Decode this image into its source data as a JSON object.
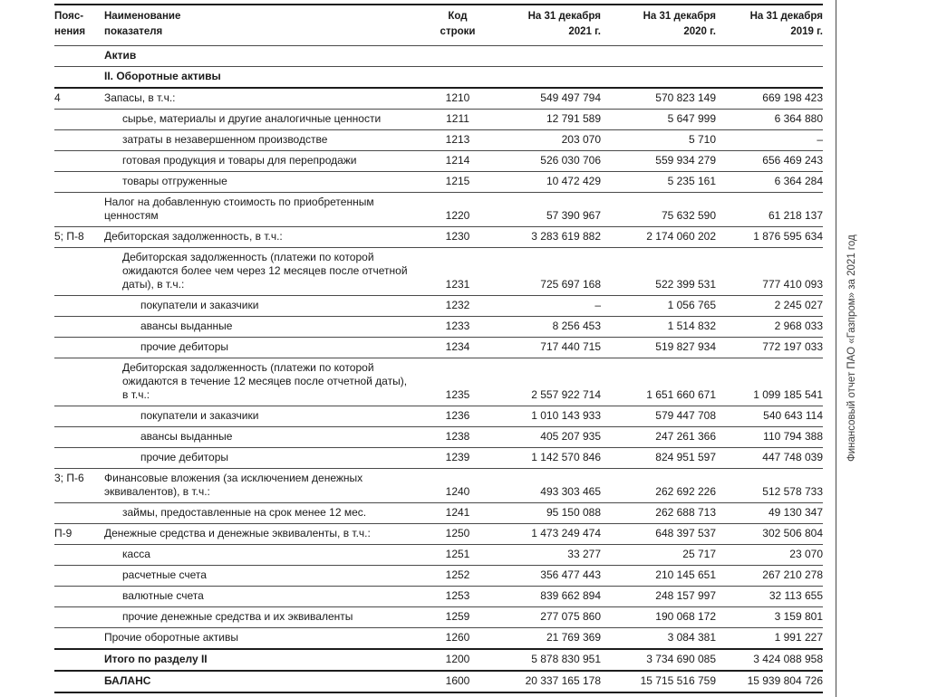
{
  "page": {
    "side_note": "Финансовый отчет ПАО «Газпром» за 2021 год"
  },
  "table": {
    "header": {
      "explanations": "Пояс-\nнения",
      "name": "Наименование\nпоказателя",
      "code": "Код\nстроки",
      "y2021": "На 31 декабря\n2021 г.",
      "y2020": "На 31 декабря\n2020 г.",
      "y2019": "На 31 декабря\n2019 г."
    },
    "rows": [
      {
        "section": true,
        "bold": true,
        "name": "Актив",
        "rule": "normal"
      },
      {
        "section": true,
        "bold": true,
        "name": "II. Оборотные активы",
        "rule": "strong"
      },
      {
        "expl": "4",
        "name": "Запасы, в т.ч.:",
        "indent": 0,
        "code": "1210",
        "v2021": "549 497 794",
        "v2020": "570 823 149",
        "v2019": "669 198 423",
        "rule": "normal"
      },
      {
        "name": "сырье, материалы и другие аналогичные ценности",
        "indent": 1,
        "code": "1211",
        "v2021": "12 791 589",
        "v2020": "5 647 999",
        "v2019": "6 364 880",
        "rule": "normal"
      },
      {
        "name": "затраты в незавершенном производстве",
        "indent": 1,
        "code": "1213",
        "v2021": "203 070",
        "v2020": "5 710",
        "v2019": "–",
        "rule": "normal"
      },
      {
        "name": "готовая продукция и товары для перепродажи",
        "indent": 1,
        "code": "1214",
        "v2021": "526 030 706",
        "v2020": "559 934 279",
        "v2019": "656 469 243",
        "rule": "normal"
      },
      {
        "name": "товары отгруженные",
        "indent": 1,
        "code": "1215",
        "v2021": "10 472 429",
        "v2020": "5 235 161",
        "v2019": "6 364 284",
        "rule": "normal"
      },
      {
        "name": "Налог на добавленную стоимость по приобретенным ценностям",
        "indent": 0,
        "code": "1220",
        "v2021": "57 390 967",
        "v2020": "75 632 590",
        "v2019": "61 218 137",
        "rule": "normal"
      },
      {
        "expl": "5; П-8",
        "name": "Дебиторская задолженность, в т.ч.:",
        "indent": 0,
        "code": "1230",
        "v2021": "3 283 619 882",
        "v2020": "2 174 060 202",
        "v2019": "1 876 595 634",
        "rule": "normal"
      },
      {
        "name": "Дебиторская задолженность (платежи по которой ожидаются более чем через 12 месяцев после отчетной даты), в т.ч.:",
        "indent": 1,
        "code": "1231",
        "v2021": "725 697 168",
        "v2020": "522 399 531",
        "v2019": "777 410 093",
        "rule": "normal"
      },
      {
        "name": "покупатели и заказчики",
        "indent": 2,
        "code": "1232",
        "v2021": "–",
        "v2020": "1 056 765",
        "v2019": "2 245 027",
        "rule": "normal"
      },
      {
        "name": "авансы выданные",
        "indent": 2,
        "code": "1233",
        "v2021": "8 256 453",
        "v2020": "1 514 832",
        "v2019": "2 968 033",
        "rule": "normal"
      },
      {
        "name": "прочие дебиторы",
        "indent": 2,
        "code": "1234",
        "v2021": "717 440 715",
        "v2020": "519 827 934",
        "v2019": "772 197 033",
        "rule": "normal"
      },
      {
        "name": "Дебиторская задолженность (платежи по которой ожидаются в течение 12 месяцев после отчетной даты), в т.ч.:",
        "indent": 1,
        "code": "1235",
        "v2021": "2 557 922 714",
        "v2020": "1 651 660 671",
        "v2019": "1 099 185 541",
        "rule": "normal"
      },
      {
        "name": "покупатели и заказчики",
        "indent": 2,
        "code": "1236",
        "v2021": "1 010 143 933",
        "v2020": "579 447 708",
        "v2019": "540 643 114",
        "rule": "normal"
      },
      {
        "name": "авансы выданные",
        "indent": 2,
        "code": "1238",
        "v2021": "405 207 935",
        "v2020": "247 261 366",
        "v2019": "110 794 388",
        "rule": "normal"
      },
      {
        "name": "прочие дебиторы",
        "indent": 2,
        "code": "1239",
        "v2021": "1 142 570 846",
        "v2020": "824 951 597",
        "v2019": "447 748 039",
        "rule": "normal"
      },
      {
        "expl": "3; П-6",
        "name": "Финансовые вложения (за исключением денежных эквивалентов), в т.ч.:",
        "indent": 0,
        "code": "1240",
        "v2021": "493 303 465",
        "v2020": "262 692 226",
        "v2019": "512 578 733",
        "rule": "normal"
      },
      {
        "name": "займы, предоставленные на срок менее 12 мес.",
        "indent": 1,
        "code": "1241",
        "v2021": "95 150 088",
        "v2020": "262 688 713",
        "v2019": "49 130 347",
        "rule": "normal"
      },
      {
        "expl": "П-9",
        "name": "Денежные средства и денежные эквиваленты, в т.ч.:",
        "indent": 0,
        "code": "1250",
        "v2021": "1 473 249 474",
        "v2020": "648 397 537",
        "v2019": "302 506 804",
        "rule": "normal"
      },
      {
        "name": "касса",
        "indent": 1,
        "code": "1251",
        "v2021": "33 277",
        "v2020": "25 717",
        "v2019": "23 070",
        "rule": "normal"
      },
      {
        "name": "расчетные счета",
        "indent": 1,
        "code": "1252",
        "v2021": "356 477 443",
        "v2020": "210 145 651",
        "v2019": "267 210 278",
        "rule": "normal"
      },
      {
        "name": "валютные счета",
        "indent": 1,
        "code": "1253",
        "v2021": "839 662 894",
        "v2020": "248 157 997",
        "v2019": "32 113 655",
        "rule": "normal"
      },
      {
        "name": "прочие денежные средства и их эквиваленты",
        "indent": 1,
        "code": "1259",
        "v2021": "277 075 860",
        "v2020": "190 068 172",
        "v2019": "3 159 801",
        "rule": "normal"
      },
      {
        "name": "Прочие оборотные активы",
        "indent": 0,
        "code": "1260",
        "v2021": "21 769 369",
        "v2020": "3 084 381",
        "v2019": "1 991 227",
        "rule": "strong"
      },
      {
        "bold": true,
        "name": "Итого по разделу II",
        "indent": 0,
        "code": "1200",
        "v2021": "5 878 830 951",
        "v2020": "3 734 690 085",
        "v2019": "3 424 088 958",
        "rule": "strong"
      },
      {
        "bold": true,
        "name": "БАЛАНС",
        "indent": 0,
        "code": "1600",
        "v2021": "20 337 165 178",
        "v2020": "15 715 516 759",
        "v2019": "15 939 804 726",
        "rule": "strong"
      }
    ]
  }
}
